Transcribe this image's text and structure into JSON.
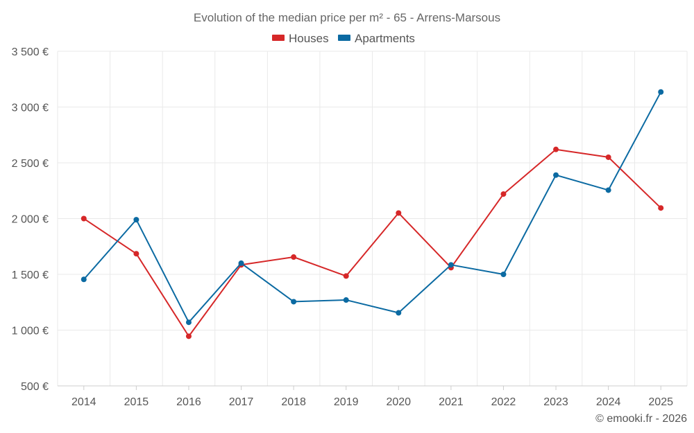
{
  "chart_data": {
    "type": "line",
    "title": "Evolution of the median price per m² - 65 - Arrens-Marsous",
    "categories": [
      "2014",
      "2015",
      "2016",
      "2017",
      "2018",
      "2019",
      "2020",
      "2021",
      "2022",
      "2023",
      "2024",
      "2025"
    ],
    "series": [
      {
        "name": "Houses",
        "color": "#d62728",
        "values": [
          2000,
          1685,
          945,
          1585,
          1655,
          1485,
          2050,
          1560,
          2220,
          2620,
          2550,
          2095
        ]
      },
      {
        "name": "Apartments",
        "color": "#0b6aa2",
        "values": [
          1455,
          1990,
          1070,
          1600,
          1255,
          1270,
          1155,
          1585,
          1500,
          2390,
          2255,
          3135
        ]
      }
    ],
    "ylim": [
      500,
      3500
    ],
    "yticks": [
      500,
      1000,
      1500,
      2000,
      2500,
      3000,
      3500
    ],
    "ytick_labels": [
      "500 €",
      "1 000 €",
      "1 500 €",
      "2 000 €",
      "2 500 €",
      "3 000 €",
      "3 500 €"
    ],
    "xlabel": "",
    "ylabel": "",
    "legend_position": "top-center",
    "grid": true
  },
  "credit": "© emooki.fr - 2026"
}
